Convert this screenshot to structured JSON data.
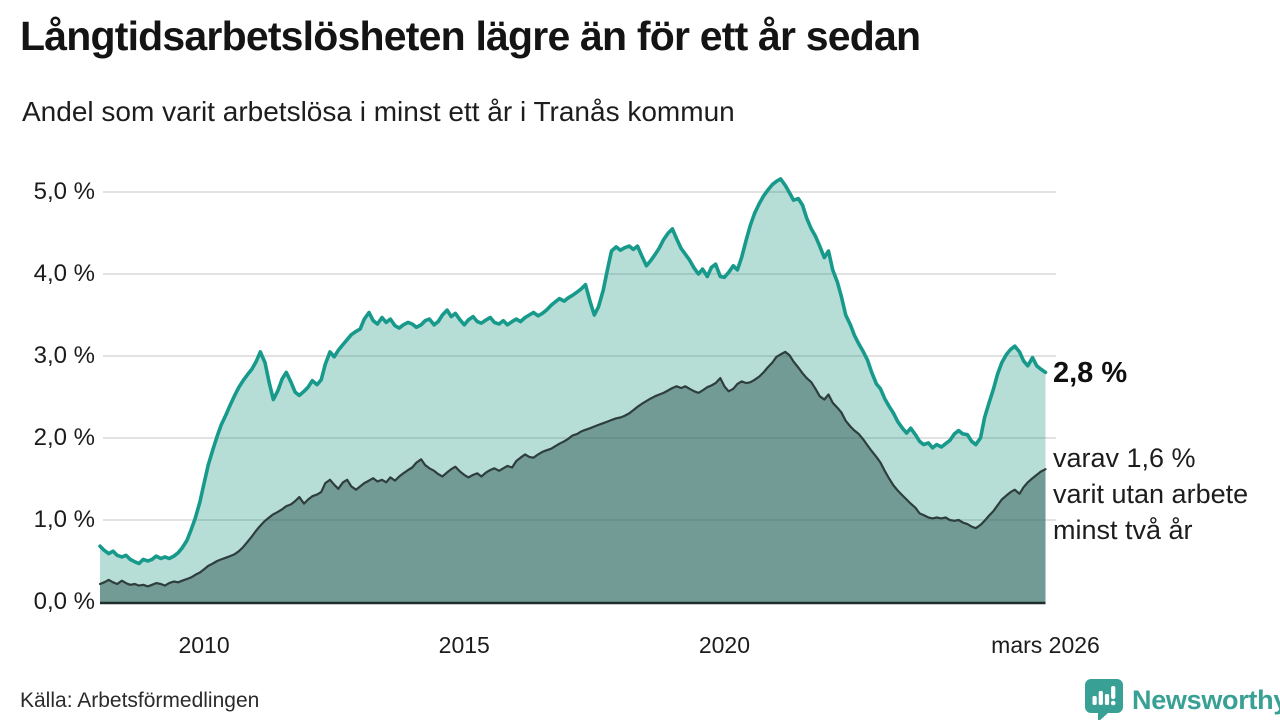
{
  "header": {
    "title": "Långtidsarbetslösheten lägre än för ett år sedan",
    "subtitle": "Andel som varit arbetslösa i minst ett år i Tranås kommun"
  },
  "footer": {
    "source": "Källa: Arbetsförmedlingen",
    "logo_text": "Newsworthy"
  },
  "colors": {
    "accent_teal": "#179a8b",
    "fill_light": "rgba(18,142,122,0.30)",
    "fill_dark": "rgba(47,89,84,0.50)",
    "line_dark": "#2e3e3c",
    "grid": "#d8d8d8",
    "baseline": "#1f2e2c",
    "logo_teal": "#38a094"
  },
  "chart_data": {
    "type": "area",
    "title": "Långtidsarbetslösheten lägre än för ett år sedan",
    "subtitle": "Andel som varit arbetslösa i minst ett år i Tranås kommun",
    "unit": "percent",
    "grid": true,
    "legend": "none",
    "x_range": [
      2008.0,
      2026.17
    ],
    "ylim": [
      0,
      5.4
    ],
    "y_axis": {
      "ticks": [
        {
          "label": "0,0 %",
          "value": 0
        },
        {
          "label": "1,0 %",
          "value": 1
        },
        {
          "label": "2,0 %",
          "value": 2
        },
        {
          "label": "3,0 %",
          "value": 3
        },
        {
          "label": "4,0 %",
          "value": 4
        },
        {
          "label": "5,0 %",
          "value": 5
        }
      ]
    },
    "x_axis": {
      "ticks": [
        {
          "label": "2010",
          "year": 2010
        },
        {
          "label": "2015",
          "year": 2015
        },
        {
          "label": "2020",
          "year": 2020
        },
        {
          "label": "mars 2026",
          "year": 2026.17
        }
      ]
    },
    "series": [
      {
        "id": "arbetslosa-minst-ett-ar",
        "end_label": "2,8 %",
        "latest_value": 2.8,
        "line_color": "#179a8b",
        "fill_color": "rgba(18,142,122,0.30)",
        "point_index": 1
      },
      {
        "id": "arbetslosa-minst-tva-ar",
        "end_label_lines": [
          "varav 1,6 %",
          "varit utan arbete",
          "minst två år"
        ],
        "latest_value": 1.6,
        "line_color": "#2e3e3c",
        "fill_color": "rgba(47,89,84,0.50)",
        "point_index": 2
      }
    ],
    "points": [
      [
        2008.0,
        0.68,
        0.22
      ],
      [
        2008.08,
        0.63,
        0.24
      ],
      [
        2008.17,
        0.59,
        0.27
      ],
      [
        2008.25,
        0.62,
        0.24
      ],
      [
        2008.33,
        0.57,
        0.22
      ],
      [
        2008.42,
        0.55,
        0.26
      ],
      [
        2008.5,
        0.57,
        0.23
      ],
      [
        2008.58,
        0.52,
        0.21
      ],
      [
        2008.67,
        0.49,
        0.22
      ],
      [
        2008.75,
        0.47,
        0.2
      ],
      [
        2008.83,
        0.52,
        0.21
      ],
      [
        2008.92,
        0.5,
        0.19
      ],
      [
        2009.0,
        0.52,
        0.21
      ],
      [
        2009.08,
        0.56,
        0.23
      ],
      [
        2009.17,
        0.53,
        0.22
      ],
      [
        2009.25,
        0.55,
        0.2
      ],
      [
        2009.33,
        0.53,
        0.23
      ],
      [
        2009.42,
        0.56,
        0.25
      ],
      [
        2009.5,
        0.6,
        0.24
      ],
      [
        2009.58,
        0.66,
        0.26
      ],
      [
        2009.67,
        0.75,
        0.28
      ],
      [
        2009.75,
        0.88,
        0.3
      ],
      [
        2009.83,
        1.02,
        0.33
      ],
      [
        2009.92,
        1.22,
        0.36
      ],
      [
        2010.0,
        1.45,
        0.4
      ],
      [
        2010.08,
        1.67,
        0.44
      ],
      [
        2010.17,
        1.86,
        0.47
      ],
      [
        2010.25,
        2.02,
        0.5
      ],
      [
        2010.33,
        2.16,
        0.52
      ],
      [
        2010.42,
        2.28,
        0.54
      ],
      [
        2010.5,
        2.4,
        0.56
      ],
      [
        2010.58,
        2.51,
        0.58
      ],
      [
        2010.67,
        2.62,
        0.62
      ],
      [
        2010.75,
        2.7,
        0.67
      ],
      [
        2010.83,
        2.77,
        0.73
      ],
      [
        2010.92,
        2.84,
        0.8
      ],
      [
        2011.0,
        2.93,
        0.87
      ],
      [
        2011.08,
        3.05,
        0.93
      ],
      [
        2011.17,
        2.92,
        0.99
      ],
      [
        2011.25,
        2.68,
        1.03
      ],
      [
        2011.33,
        2.47,
        1.07
      ],
      [
        2011.42,
        2.58,
        1.1
      ],
      [
        2011.5,
        2.72,
        1.13
      ],
      [
        2011.58,
        2.8,
        1.17
      ],
      [
        2011.67,
        2.68,
        1.19
      ],
      [
        2011.75,
        2.56,
        1.23
      ],
      [
        2011.83,
        2.52,
        1.28
      ],
      [
        2011.92,
        2.57,
        1.2
      ],
      [
        2012.0,
        2.62,
        1.25
      ],
      [
        2012.08,
        2.7,
        1.29
      ],
      [
        2012.17,
        2.65,
        1.31
      ],
      [
        2012.25,
        2.71,
        1.34
      ],
      [
        2012.33,
        2.9,
        1.45
      ],
      [
        2012.42,
        3.05,
        1.49
      ],
      [
        2012.5,
        2.99,
        1.43
      ],
      [
        2012.58,
        3.07,
        1.38
      ],
      [
        2012.67,
        3.14,
        1.46
      ],
      [
        2012.75,
        3.2,
        1.49
      ],
      [
        2012.83,
        3.26,
        1.41
      ],
      [
        2012.92,
        3.3,
        1.37
      ],
      [
        2013.0,
        3.33,
        1.41
      ],
      [
        2013.08,
        3.45,
        1.45
      ],
      [
        2013.17,
        3.53,
        1.48
      ],
      [
        2013.25,
        3.43,
        1.51
      ],
      [
        2013.33,
        3.39,
        1.47
      ],
      [
        2013.42,
        3.47,
        1.49
      ],
      [
        2013.5,
        3.41,
        1.46
      ],
      [
        2013.58,
        3.45,
        1.52
      ],
      [
        2013.67,
        3.37,
        1.48
      ],
      [
        2013.75,
        3.34,
        1.53
      ],
      [
        2013.83,
        3.38,
        1.57
      ],
      [
        2013.92,
        3.41,
        1.61
      ],
      [
        2014.0,
        3.39,
        1.64
      ],
      [
        2014.08,
        3.35,
        1.7
      ],
      [
        2014.17,
        3.38,
        1.74
      ],
      [
        2014.25,
        3.43,
        1.67
      ],
      [
        2014.33,
        3.45,
        1.63
      ],
      [
        2014.42,
        3.38,
        1.6
      ],
      [
        2014.5,
        3.42,
        1.56
      ],
      [
        2014.58,
        3.5,
        1.53
      ],
      [
        2014.67,
        3.56,
        1.58
      ],
      [
        2014.75,
        3.48,
        1.62
      ],
      [
        2014.83,
        3.52,
        1.65
      ],
      [
        2014.92,
        3.44,
        1.59
      ],
      [
        2015.0,
        3.38,
        1.55
      ],
      [
        2015.08,
        3.44,
        1.52
      ],
      [
        2015.17,
        3.48,
        1.55
      ],
      [
        2015.25,
        3.42,
        1.57
      ],
      [
        2015.33,
        3.4,
        1.53
      ],
      [
        2015.42,
        3.44,
        1.58
      ],
      [
        2015.5,
        3.47,
        1.61
      ],
      [
        2015.58,
        3.41,
        1.63
      ],
      [
        2015.67,
        3.39,
        1.6
      ],
      [
        2015.75,
        3.43,
        1.63
      ],
      [
        2015.83,
        3.38,
        1.66
      ],
      [
        2015.92,
        3.42,
        1.64
      ],
      [
        2016.0,
        3.45,
        1.72
      ],
      [
        2016.08,
        3.42,
        1.76
      ],
      [
        2016.17,
        3.47,
        1.8
      ],
      [
        2016.25,
        3.5,
        1.77
      ],
      [
        2016.33,
        3.53,
        1.76
      ],
      [
        2016.42,
        3.49,
        1.8
      ],
      [
        2016.5,
        3.52,
        1.83
      ],
      [
        2016.58,
        3.56,
        1.85
      ],
      [
        2016.67,
        3.62,
        1.87
      ],
      [
        2016.75,
        3.66,
        1.9
      ],
      [
        2016.83,
        3.7,
        1.93
      ],
      [
        2016.92,
        3.67,
        1.96
      ],
      [
        2017.0,
        3.71,
        1.99
      ],
      [
        2017.08,
        3.74,
        2.03
      ],
      [
        2017.17,
        3.78,
        2.05
      ],
      [
        2017.25,
        3.82,
        2.08
      ],
      [
        2017.33,
        3.87,
        2.1
      ],
      [
        2017.42,
        3.66,
        2.12
      ],
      [
        2017.5,
        3.5,
        2.14
      ],
      [
        2017.58,
        3.6,
        2.16
      ],
      [
        2017.67,
        3.8,
        2.18
      ],
      [
        2017.75,
        4.05,
        2.2
      ],
      [
        2017.83,
        4.28,
        2.22
      ],
      [
        2017.92,
        4.33,
        2.24
      ],
      [
        2018.0,
        4.29,
        2.25
      ],
      [
        2018.08,
        4.32,
        2.27
      ],
      [
        2018.17,
        4.34,
        2.3
      ],
      [
        2018.25,
        4.3,
        2.34
      ],
      [
        2018.33,
        4.34,
        2.38
      ],
      [
        2018.42,
        4.21,
        2.42
      ],
      [
        2018.5,
        4.1,
        2.45
      ],
      [
        2018.58,
        4.16,
        2.48
      ],
      [
        2018.67,
        4.24,
        2.51
      ],
      [
        2018.75,
        4.32,
        2.53
      ],
      [
        2018.83,
        4.42,
        2.55
      ],
      [
        2018.92,
        4.5,
        2.58
      ],
      [
        2019.0,
        4.55,
        2.61
      ],
      [
        2019.08,
        4.43,
        2.63
      ],
      [
        2019.17,
        4.31,
        2.61
      ],
      [
        2019.25,
        4.24,
        2.63
      ],
      [
        2019.33,
        4.17,
        2.6
      ],
      [
        2019.42,
        4.07,
        2.57
      ],
      [
        2019.5,
        4.0,
        2.55
      ],
      [
        2019.58,
        4.06,
        2.58
      ],
      [
        2019.67,
        3.97,
        2.62
      ],
      [
        2019.75,
        4.08,
        2.64
      ],
      [
        2019.83,
        4.12,
        2.67
      ],
      [
        2019.92,
        3.97,
        2.73
      ],
      [
        2020.0,
        3.96,
        2.63
      ],
      [
        2020.08,
        4.02,
        2.57
      ],
      [
        2020.17,
        4.1,
        2.6
      ],
      [
        2020.25,
        4.05,
        2.66
      ],
      [
        2020.33,
        4.2,
        2.69
      ],
      [
        2020.42,
        4.42,
        2.67
      ],
      [
        2020.5,
        4.6,
        2.68
      ],
      [
        2020.58,
        4.74,
        2.71
      ],
      [
        2020.67,
        4.86,
        2.75
      ],
      [
        2020.75,
        4.95,
        2.8
      ],
      [
        2020.83,
        5.02,
        2.86
      ],
      [
        2020.92,
        5.09,
        2.92
      ],
      [
        2021.0,
        5.13,
        2.99
      ],
      [
        2021.08,
        5.16,
        3.02
      ],
      [
        2021.17,
        5.08,
        3.05
      ],
      [
        2021.25,
        4.99,
        3.01
      ],
      [
        2021.33,
        4.9,
        2.93
      ],
      [
        2021.42,
        4.92,
        2.86
      ],
      [
        2021.5,
        4.84,
        2.79
      ],
      [
        2021.58,
        4.68,
        2.73
      ],
      [
        2021.67,
        4.55,
        2.68
      ],
      [
        2021.75,
        4.46,
        2.6
      ],
      [
        2021.83,
        4.34,
        2.51
      ],
      [
        2021.92,
        4.2,
        2.47
      ],
      [
        2022.0,
        4.28,
        2.53
      ],
      [
        2022.08,
        4.05,
        2.43
      ],
      [
        2022.17,
        3.9,
        2.37
      ],
      [
        2022.25,
        3.72,
        2.31
      ],
      [
        2022.33,
        3.5,
        2.21
      ],
      [
        2022.42,
        3.38,
        2.14
      ],
      [
        2022.5,
        3.25,
        2.09
      ],
      [
        2022.58,
        3.15,
        2.05
      ],
      [
        2022.67,
        3.05,
        1.98
      ],
      [
        2022.75,
        2.95,
        1.91
      ],
      [
        2022.83,
        2.8,
        1.84
      ],
      [
        2022.92,
        2.66,
        1.77
      ],
      [
        2023.0,
        2.6,
        1.7
      ],
      [
        2023.08,
        2.48,
        1.6
      ],
      [
        2023.17,
        2.38,
        1.5
      ],
      [
        2023.25,
        2.3,
        1.42
      ],
      [
        2023.33,
        2.2,
        1.36
      ],
      [
        2023.42,
        2.12,
        1.3
      ],
      [
        2023.5,
        2.06,
        1.25
      ],
      [
        2023.58,
        2.12,
        1.2
      ],
      [
        2023.67,
        2.04,
        1.15
      ],
      [
        2023.75,
        1.96,
        1.08
      ],
      [
        2023.83,
        1.92,
        1.06
      ],
      [
        2023.92,
        1.94,
        1.03
      ],
      [
        2024.0,
        1.88,
        1.02
      ],
      [
        2024.08,
        1.92,
        1.03
      ],
      [
        2024.17,
        1.89,
        1.02
      ],
      [
        2024.25,
        1.93,
        1.03
      ],
      [
        2024.33,
        1.97,
        1.0
      ],
      [
        2024.42,
        2.05,
        0.99
      ],
      [
        2024.5,
        2.09,
        1.0
      ],
      [
        2024.58,
        2.05,
        0.97
      ],
      [
        2024.67,
        2.04,
        0.95
      ],
      [
        2024.75,
        1.96,
        0.92
      ],
      [
        2024.83,
        1.92,
        0.9
      ],
      [
        2024.92,
        2.0,
        0.94
      ],
      [
        2025.0,
        2.25,
        0.99
      ],
      [
        2025.08,
        2.42,
        1.05
      ],
      [
        2025.17,
        2.6,
        1.11
      ],
      [
        2025.25,
        2.78,
        1.18
      ],
      [
        2025.33,
        2.92,
        1.25
      ],
      [
        2025.42,
        3.02,
        1.3
      ],
      [
        2025.5,
        3.08,
        1.34
      ],
      [
        2025.58,
        3.12,
        1.37
      ],
      [
        2025.67,
        3.05,
        1.32
      ],
      [
        2025.75,
        2.94,
        1.4
      ],
      [
        2025.83,
        2.88,
        1.46
      ],
      [
        2025.92,
        2.98,
        1.51
      ],
      [
        2026.0,
        2.88,
        1.55
      ],
      [
        2026.08,
        2.84,
        1.59
      ],
      [
        2026.17,
        2.8,
        1.62
      ]
    ]
  }
}
